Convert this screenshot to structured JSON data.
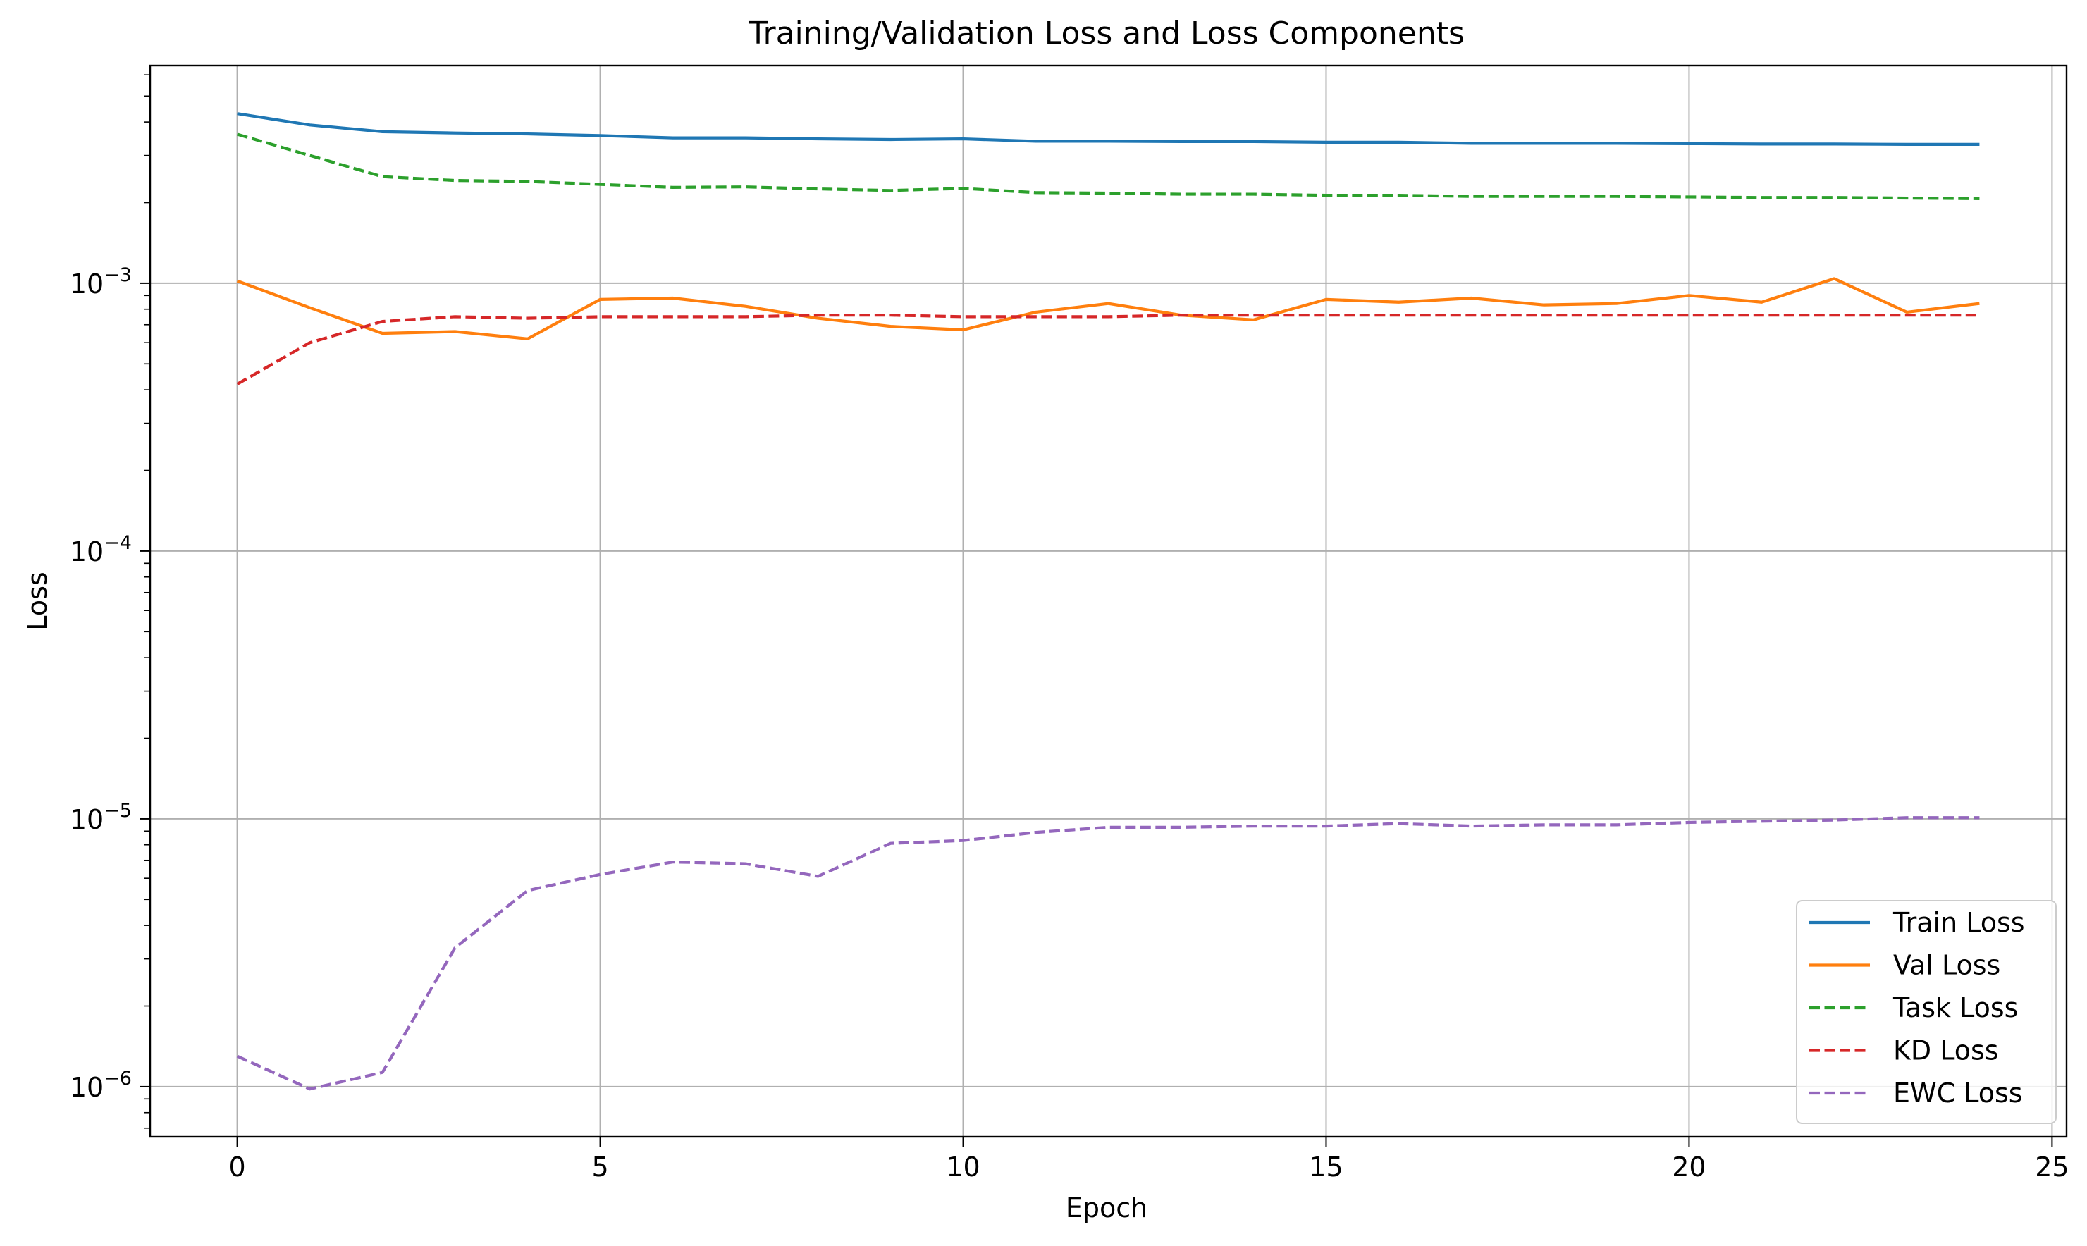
{
  "chart_data": {
    "type": "line",
    "title": "Training/Validation Loss and Loss Components",
    "xlabel": "Epoch",
    "ylabel": "Loss",
    "xscale": "linear",
    "yscale": "log",
    "xlim": [
      -1.2,
      25.2
    ],
    "ylim": [
      6.5e-07,
      0.0065
    ],
    "grid": true,
    "legend_position": "lower-right",
    "x_ticks": [
      {
        "value": 0,
        "label": "0"
      },
      {
        "value": 5,
        "label": "5"
      },
      {
        "value": 10,
        "label": "10"
      },
      {
        "value": 15,
        "label": "15"
      },
      {
        "value": 20,
        "label": "20"
      },
      {
        "value": 25,
        "label": "25"
      }
    ],
    "y_ticks": [
      {
        "value": 1e-06,
        "base": "10",
        "exp": "−6"
      },
      {
        "value": 1e-05,
        "base": "10",
        "exp": "−5"
      },
      {
        "value": 0.0001,
        "base": "10",
        "exp": "−4"
      },
      {
        "value": 0.001,
        "base": "10",
        "exp": "−3"
      }
    ],
    "x": [
      0,
      1,
      2,
      3,
      4,
      5,
      6,
      7,
      8,
      9,
      10,
      11,
      12,
      13,
      14,
      15,
      16,
      17,
      18,
      19,
      20,
      21,
      22,
      23,
      24
    ],
    "series": [
      {
        "name": "Train Loss",
        "color": "#1f77b4",
        "dashed": false,
        "values": [
          0.0043,
          0.0039,
          0.00368,
          0.00364,
          0.00361,
          0.00356,
          0.00349,
          0.00349,
          0.00346,
          0.00344,
          0.00346,
          0.00339,
          0.00339,
          0.00338,
          0.00338,
          0.00336,
          0.00336,
          0.00333,
          0.00333,
          0.00333,
          0.00332,
          0.00331,
          0.00331,
          0.0033,
          0.0033
        ]
      },
      {
        "name": "Val Loss",
        "color": "#ff7f0e",
        "dashed": false,
        "values": [
          0.00102,
          0.00081,
          0.00065,
          0.00066,
          0.00062,
          0.00087,
          0.00088,
          0.00082,
          0.00074,
          0.00069,
          0.00067,
          0.00078,
          0.00084,
          0.00076,
          0.00073,
          0.00087,
          0.00085,
          0.00088,
          0.00083,
          0.00084,
          0.0009,
          0.00085,
          0.00104,
          0.00078,
          0.00084
        ]
      },
      {
        "name": "Task Loss",
        "color": "#2ca02c",
        "dashed": true,
        "values": [
          0.0036,
          0.003,
          0.0025,
          0.00242,
          0.0024,
          0.00234,
          0.00228,
          0.00229,
          0.00225,
          0.00222,
          0.00226,
          0.00218,
          0.00217,
          0.00215,
          0.00215,
          0.00213,
          0.00213,
          0.00211,
          0.00211,
          0.00211,
          0.0021,
          0.00209,
          0.00209,
          0.00208,
          0.00207
        ]
      },
      {
        "name": "KD Loss",
        "color": "#d62728",
        "dashed": true,
        "values": [
          0.00042,
          0.0006,
          0.00072,
          0.00075,
          0.00074,
          0.00075,
          0.00075,
          0.00075,
          0.00076,
          0.00076,
          0.00075,
          0.00075,
          0.00075,
          0.00076,
          0.00076,
          0.00076,
          0.00076,
          0.00076,
          0.00076,
          0.00076,
          0.00076,
          0.00076,
          0.00076,
          0.00076,
          0.00076
        ]
      },
      {
        "name": "EWC Loss",
        "color": "#9467bd",
        "dashed": true,
        "values": [
          1.3e-06,
          9.8e-07,
          1.13e-06,
          3.3e-06,
          5.4e-06,
          6.2e-06,
          6.9e-06,
          6.8e-06,
          6.1e-06,
          8.1e-06,
          8.3e-06,
          8.9e-06,
          9.3e-06,
          9.3e-06,
          9.4e-06,
          9.4e-06,
          9.6e-06,
          9.4e-06,
          9.5e-06,
          9.5e-06,
          9.7e-06,
          9.8e-06,
          9.9e-06,
          1.01e-05,
          1.01e-05
        ]
      }
    ]
  }
}
